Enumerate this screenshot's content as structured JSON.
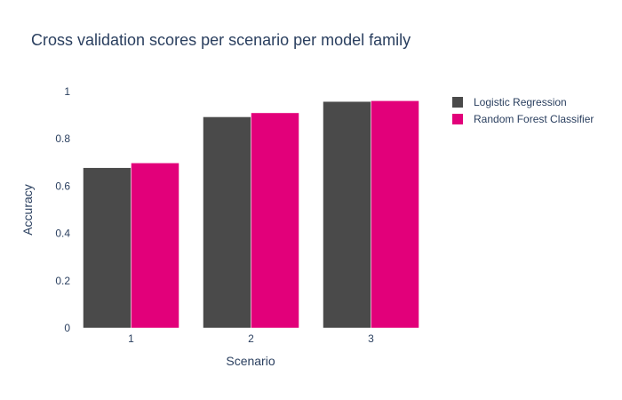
{
  "chart_data": {
    "type": "bar",
    "title": "Cross validation scores per scenario per model family",
    "xlabel": "Scenario",
    "ylabel": "Accuracy",
    "categories": [
      "1",
      "2",
      "3"
    ],
    "ylim": [
      0,
      1
    ],
    "yticks": [
      "0",
      "0.2",
      "0.4",
      "0.6",
      "0.8",
      "1"
    ],
    "grid": false,
    "legend_position": "top-right",
    "series": [
      {
        "name": "Logistic Regression",
        "color": "#4a4a4a",
        "values": [
          0.678,
          0.893,
          0.958
        ]
      },
      {
        "name": "Random Forest Classifier",
        "color": "#e2007a",
        "values": [
          0.698,
          0.91,
          0.961
        ]
      }
    ]
  }
}
